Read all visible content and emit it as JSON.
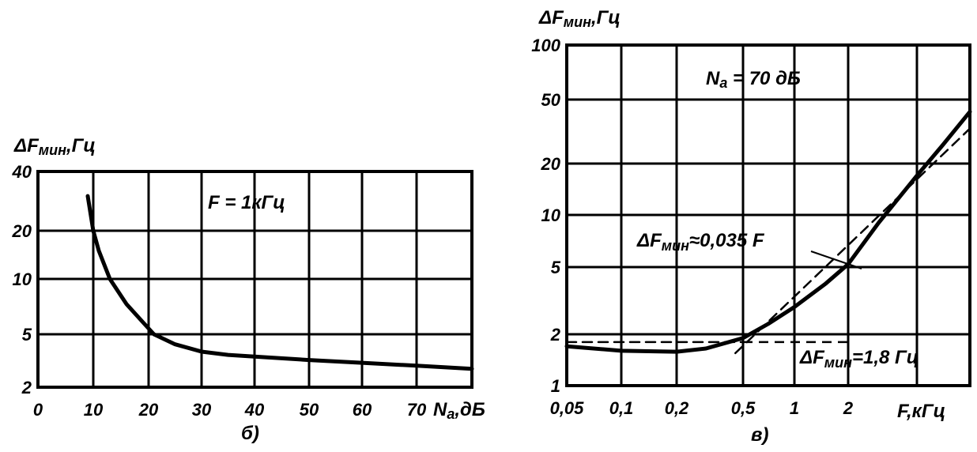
{
  "chart_data": [
    {
      "type": "line",
      "panel_label": "б)",
      "ylabel": {
        "main": "ΔF",
        "sub": "мин",
        "unit": ",Гц"
      },
      "xlabel": {
        "main": "N",
        "sub": "a",
        "unit": ",дБ"
      },
      "annotation": "F = 1кГц",
      "x_scale": "linear",
      "y_scale": "log",
      "xlim": [
        0,
        80
      ],
      "ylim": [
        2,
        40
      ],
      "x_ticks": [
        0,
        10,
        20,
        30,
        40,
        50,
        60,
        70
      ],
      "x_tick_labels": [
        "0",
        "10",
        "20",
        "30",
        "40",
        "50",
        "60",
        "70"
      ],
      "y_ticks": [
        40,
        20,
        10,
        5,
        2
      ],
      "y_tick_labels": [
        "40",
        "20",
        "10",
        "5",
        "2"
      ],
      "grid": true,
      "series": [
        {
          "style": "solid",
          "x": [
            9,
            10,
            11,
            13,
            16,
            19,
            21,
            25,
            30,
            35,
            40,
            50,
            60,
            70,
            80
          ],
          "y": [
            30,
            20,
            15,
            10,
            7.3,
            5.8,
            5,
            4.2,
            3.7,
            3.5,
            3.4,
            3.2,
            3.05,
            2.9,
            2.75
          ]
        }
      ]
    },
    {
      "type": "line",
      "panel_label": "в)",
      "ylabel": {
        "main": "ΔF",
        "sub": "мин",
        "unit": ",Гц"
      },
      "xlabel": {
        "main": "F",
        "sub": "",
        "unit": ",кГц"
      },
      "annotation": {
        "main": "N",
        "sub": "a",
        "rest": " = 70 дБ"
      },
      "x_scale": "log",
      "y_scale": "log",
      "xlim": [
        0.05,
        10
      ],
      "ylim": [
        1,
        100
      ],
      "x_ticks": [
        0.05,
        0.1,
        0.2,
        0.5,
        1,
        2,
        5,
        10
      ],
      "x_tick_labels": [
        "0,05",
        "0,1",
        "0,2",
        "0,5",
        "1",
        "2",
        "",
        ""
      ],
      "y_ticks": [
        100,
        50,
        20,
        10,
        5,
        2,
        1
      ],
      "y_tick_labels": [
        "100",
        "50",
        "20",
        "10",
        "5",
        "2",
        "1"
      ],
      "grid": true,
      "series": [
        {
          "style": "solid",
          "x": [
            0.05,
            0.1,
            0.2,
            0.3,
            0.5,
            0.7,
            1,
            1.5,
            2,
            3,
            5,
            7,
            10
          ],
          "y": [
            1.7,
            1.6,
            1.58,
            1.65,
            1.9,
            2.3,
            2.9,
            4,
            5.2,
            9,
            17,
            26,
            42
          ]
        },
        {
          "style": "dashed",
          "x": [
            0.05,
            0.5
          ],
          "y": [
            1.8,
            1.8
          ]
        },
        {
          "style": "dashed",
          "x": [
            0.45,
            10
          ],
          "y": [
            1.55,
            33
          ]
        }
      ],
      "annotations": [
        {
          "main": "ΔF",
          "sub": "мин",
          "rest": "≈0,035 F"
        },
        {
          "main": "ΔF",
          "sub": "мин",
          "rest": "=1,8 Гц"
        }
      ]
    }
  ]
}
